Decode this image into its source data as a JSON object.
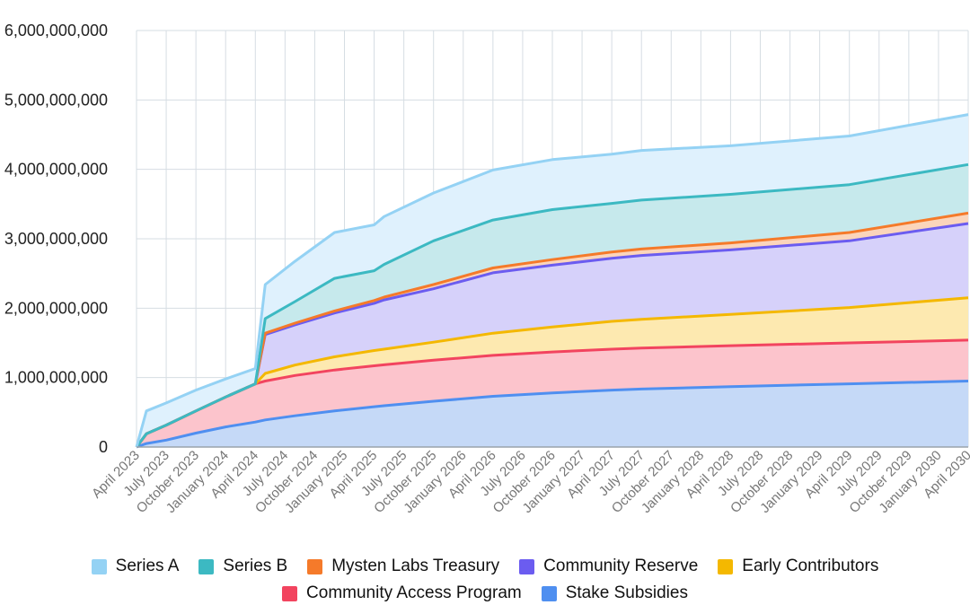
{
  "chart_data": {
    "type": "area",
    "stacked": true,
    "title": "",
    "xlabel": "",
    "ylabel": "",
    "ylim": [
      0,
      6000000000
    ],
    "yticks": [
      0,
      1000000000,
      2000000000,
      3000000000,
      4000000000,
      5000000000,
      6000000000
    ],
    "ytick_labels": [
      "0",
      "1,000,000,000",
      "2,000,000,000",
      "3,000,000,000",
      "4,000,000,000",
      "5,000,000,000",
      "6,000,000,000"
    ],
    "x_tick_labels": [
      "April 2023",
      "July 2023",
      "October 2023",
      "January 2024",
      "April 2024",
      "July 2024",
      "October 2024",
      "January 2025",
      "April 2025",
      "July 2025",
      "October 2025",
      "January 2026",
      "April 2026",
      "July 2026",
      "October 2026",
      "January 2027",
      "April 2027",
      "July 2027",
      "October 2027",
      "January 2028",
      "April 2028",
      "July 2028",
      "October 2028",
      "January 2029",
      "April 2029",
      "July 2029",
      "October 2029",
      "January 2030",
      "April 2030"
    ],
    "x": [
      0,
      1,
      3,
      6,
      9,
      12,
      13,
      16,
      20,
      24,
      25,
      30,
      36,
      42,
      48,
      51,
      60,
      72,
      84
    ],
    "x_unit": "months since April 2023",
    "grid": true,
    "legend_position": "bottom",
    "series": [
      {
        "name": "Stake Subsidies",
        "color": "#4f8ff0",
        "fill": "#c5d9f7",
        "values": [
          0,
          50,
          100,
          200,
          290,
          360,
          390,
          450,
          520,
          580,
          595,
          660,
          730,
          780,
          820,
          835,
          870,
          910,
          950
        ]
      },
      {
        "name": "Community Access Program",
        "color": "#f2445f",
        "fill": "#fcc4cc",
        "values": [
          0,
          140,
          215,
          320,
          430,
          550,
          560,
          580,
          590,
          590,
          590,
          590,
          590,
          590,
          590,
          590,
          590,
          590,
          590
        ]
      },
      {
        "name": "Early Contributors",
        "color": "#f4b800",
        "fill": "#fde9b0",
        "values": [
          0,
          0,
          0,
          0,
          0,
          0,
          110,
          150,
          190,
          220,
          225,
          260,
          320,
          360,
          400,
          415,
          450,
          510,
          610
        ]
      },
      {
        "name": "Community Reserve",
        "color": "#6b5cf0",
        "fill": "#d6d1fa",
        "values": [
          0,
          0,
          0,
          0,
          0,
          0,
          560,
          580,
          630,
          680,
          710,
          770,
          870,
          890,
          910,
          920,
          930,
          960,
          1070
        ]
      },
      {
        "name": "Mysten Labs Treasury",
        "color": "#f57a2a",
        "fill": "#fbd5bb",
        "values": [
          0,
          0,
          0,
          0,
          0,
          0,
          20,
          25,
          30,
          40,
          40,
          60,
          70,
          80,
          90,
          92,
          100,
          120,
          150
        ]
      },
      {
        "name": "Series B",
        "color": "#3cb9c2",
        "fill": "#c6e9ec",
        "values": [
          0,
          0,
          0,
          0,
          0,
          0,
          210,
          310,
          470,
          430,
          470,
          630,
          690,
          720,
          700,
          705,
          700,
          690,
          700
        ]
      },
      {
        "name": "Series A",
        "color": "#94d2f4",
        "fill": "#dff1fd",
        "values": [
          0,
          330,
          320,
          300,
          260,
          220,
          490,
          580,
          660,
          660,
          690,
          690,
          720,
          720,
          710,
          715,
          700,
          700,
          720
        ]
      }
    ],
    "value_unit": "millions"
  },
  "legend_rows": [
    [
      "Series A",
      "Series B",
      "Mysten Labs Treasury",
      "Community Reserve",
      "Early Contributors"
    ],
    [
      "Community Access Program",
      "Stake Subsidies"
    ]
  ]
}
